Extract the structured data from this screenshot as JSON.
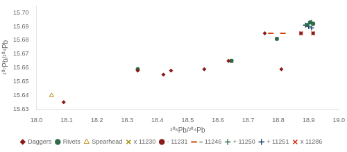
{
  "chart_data": {
    "type": "scatter",
    "xlabel": "²⁰⁶Pb/²⁰⁴Pb",
    "ylabel": "²⁰⁷Pb/²⁰⁴Pb",
    "xlim": [
      18.0,
      19.0
    ],
    "ylim": [
      15.63,
      15.705
    ],
    "xticks": [
      {
        "value": 18.0,
        "label": "18.0"
      },
      18.1,
      18.2,
      18.3,
      18.4,
      18.5,
      18.6,
      18.7,
      18.8,
      18.9,
      {
        "value": 19.0,
        "label": "19.0"
      }
    ],
    "yticks": [
      15.63,
      15.64,
      15.65,
      15.66,
      15.67,
      15.68,
      15.69,
      {
        "value": 15.7,
        "label": "15.70"
      }
    ],
    "grid": false,
    "legend": "bottom",
    "series": [
      {
        "name": "Daggers",
        "color": "#8B1A1A",
        "marker": "diamond",
        "x": [
          18.09,
          18.335,
          18.42,
          18.445,
          18.555,
          18.635,
          18.755,
          18.81,
          18.875,
          18.915
        ],
        "values": [
          15.635,
          15.658,
          15.655,
          15.658,
          15.659,
          15.665,
          15.685,
          15.659,
          15.685,
          15.685
        ]
      },
      {
        "name": "Rivets",
        "color": "#2E6B4A",
        "marker": "circle",
        "x": [
          18.335,
          18.645,
          18.795,
          18.895,
          18.905,
          18.915
        ],
        "values": [
          15.659,
          15.665,
          15.681,
          15.691,
          15.693,
          15.692
        ]
      },
      {
        "name": "Spearhead",
        "color": "#B8860B",
        "marker": "open-triangle",
        "x": [
          18.05
        ],
        "values": [
          15.64
        ]
      },
      {
        "name": "x 11230",
        "color": "#9B8B00",
        "marker": "x",
        "x": [
          18.645
        ],
        "values": [
          15.665
        ]
      },
      {
        "name": "- 11231",
        "color": "#8B1A1A",
        "marker": "dot",
        "x": [
          18.555
        ],
        "values": [
          15.659
        ]
      },
      {
        "name": "= 11246",
        "color": "#CC4400",
        "marker": "hline",
        "x": [
          18.775,
          18.815
        ],
        "values": [
          15.685,
          15.685
        ]
      },
      {
        "name": "+ 11250",
        "color": "#2E6B4A",
        "marker": "plus",
        "x": [
          18.9,
          18.91
        ],
        "values": [
          15.692,
          15.693
        ]
      },
      {
        "name": "+ 11251",
        "color": "#1A3A6B",
        "marker": "plus",
        "x": [
          18.89,
          18.9,
          18.91
        ],
        "values": [
          15.691,
          15.69,
          15.689
        ]
      },
      {
        "name": "x 11286",
        "color": "#CC2200",
        "marker": "x",
        "x": [
          18.875,
          18.915
        ],
        "values": [
          15.685,
          15.685
        ]
      }
    ]
  }
}
